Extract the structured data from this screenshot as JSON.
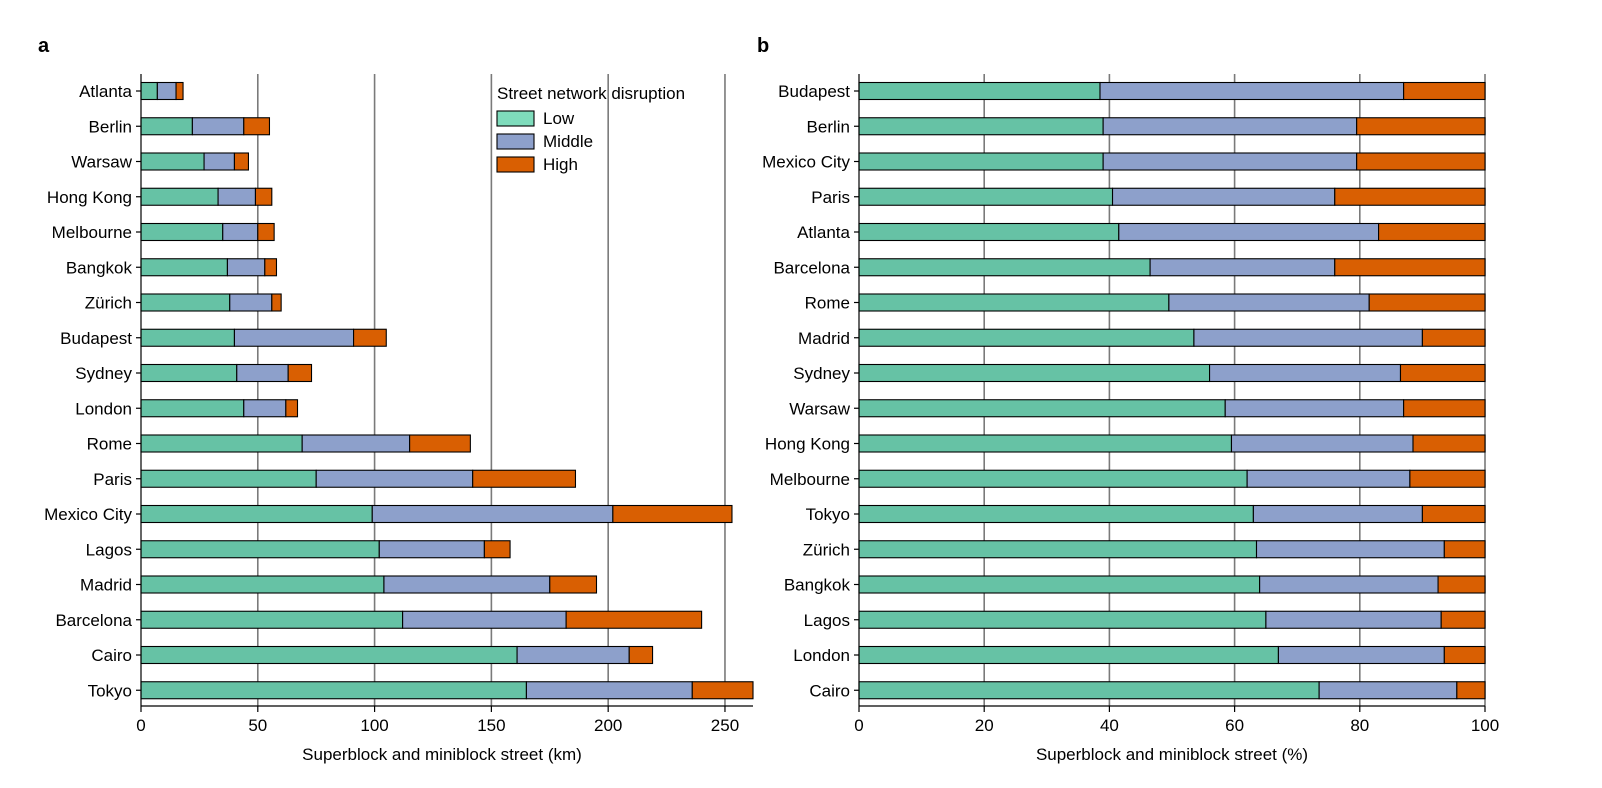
{
  "colors": {
    "Low": "#66c2a5",
    "Middle": "#8da0cb",
    "High": "#d95f02",
    "grid": "#7a7a7a",
    "stroke": "#000000"
  },
  "legend": {
    "title": "Street network disruption",
    "items": [
      {
        "label": "Low",
        "swatch": "#7fdcbc"
      },
      {
        "label": "Middle",
        "swatch": "#8da0cb"
      },
      {
        "label": "High",
        "swatch": "#d95f02"
      }
    ]
  },
  "chart_data": [
    {
      "panel": "a",
      "type": "bar",
      "orientation": "horizontal",
      "stacked": true,
      "xlabel": "Superblock and miniblock street (km)",
      "xlim": [
        0,
        262
      ],
      "xticks": [
        0,
        50,
        100,
        150,
        200,
        250
      ],
      "grid": "vertical",
      "legend": "top-right",
      "categories": [
        "Atlanta",
        "Berlin",
        "Warsaw",
        "Hong Kong",
        "Melbourne",
        "Bangkok",
        "Zürich",
        "Budapest",
        "Sydney",
        "London",
        "Rome",
        "Paris",
        "Mexico City",
        "Lagos",
        "Madrid",
        "Barcelona",
        "Cairo",
        "Tokyo"
      ],
      "series": [
        {
          "name": "Low",
          "values": [
            7,
            22,
            27,
            33,
            35,
            37,
            38,
            40,
            41,
            44,
            69,
            75,
            99,
            102,
            104,
            112,
            161,
            165
          ]
        },
        {
          "name": "Middle",
          "values": [
            8,
            22,
            13,
            16,
            15,
            16,
            18,
            51,
            22,
            18,
            46,
            67,
            103,
            45,
            71,
            70,
            48,
            71
          ]
        },
        {
          "name": "High",
          "values": [
            3,
            11,
            6,
            7,
            7,
            5,
            4,
            14,
            10,
            5,
            26,
            44,
            51,
            11,
            20,
            58,
            10,
            26
          ]
        }
      ]
    },
    {
      "panel": "b",
      "type": "bar",
      "orientation": "horizontal",
      "stacked": true,
      "xlabel": "Superblock and miniblock street (%)",
      "xlim": [
        0,
        100
      ],
      "xticks": [
        0,
        20,
        40,
        60,
        80,
        100
      ],
      "grid": "vertical",
      "categories": [
        "Budapest",
        "Berlin",
        "Mexico City",
        "Paris",
        "Atlanta",
        "Barcelona",
        "Rome",
        "Madrid",
        "Sydney",
        "Warsaw",
        "Hong Kong",
        "Melbourne",
        "Tokyo",
        "Zürich",
        "Bangkok",
        "Lagos",
        "London",
        "Cairo"
      ],
      "series": [
        {
          "name": "Low",
          "values": [
            38.5,
            39,
            39,
            40.5,
            41.5,
            46.5,
            49.5,
            53.5,
            56,
            58.5,
            59.5,
            62,
            63,
            63.5,
            64,
            65,
            67,
            73.5
          ]
        },
        {
          "name": "Middle",
          "values": [
            48.5,
            40.5,
            40.5,
            35.5,
            41.5,
            29.5,
            32,
            36.5,
            30.5,
            28.5,
            29,
            26,
            27,
            30,
            28.5,
            28,
            26.5,
            22
          ]
        },
        {
          "name": "High",
          "values": [
            13,
            20.5,
            20.5,
            24,
            17,
            24,
            18.5,
            10,
            13.5,
            13,
            11.5,
            12,
            10,
            6.5,
            7.5,
            7,
            6.5,
            4.5
          ]
        }
      ]
    }
  ]
}
